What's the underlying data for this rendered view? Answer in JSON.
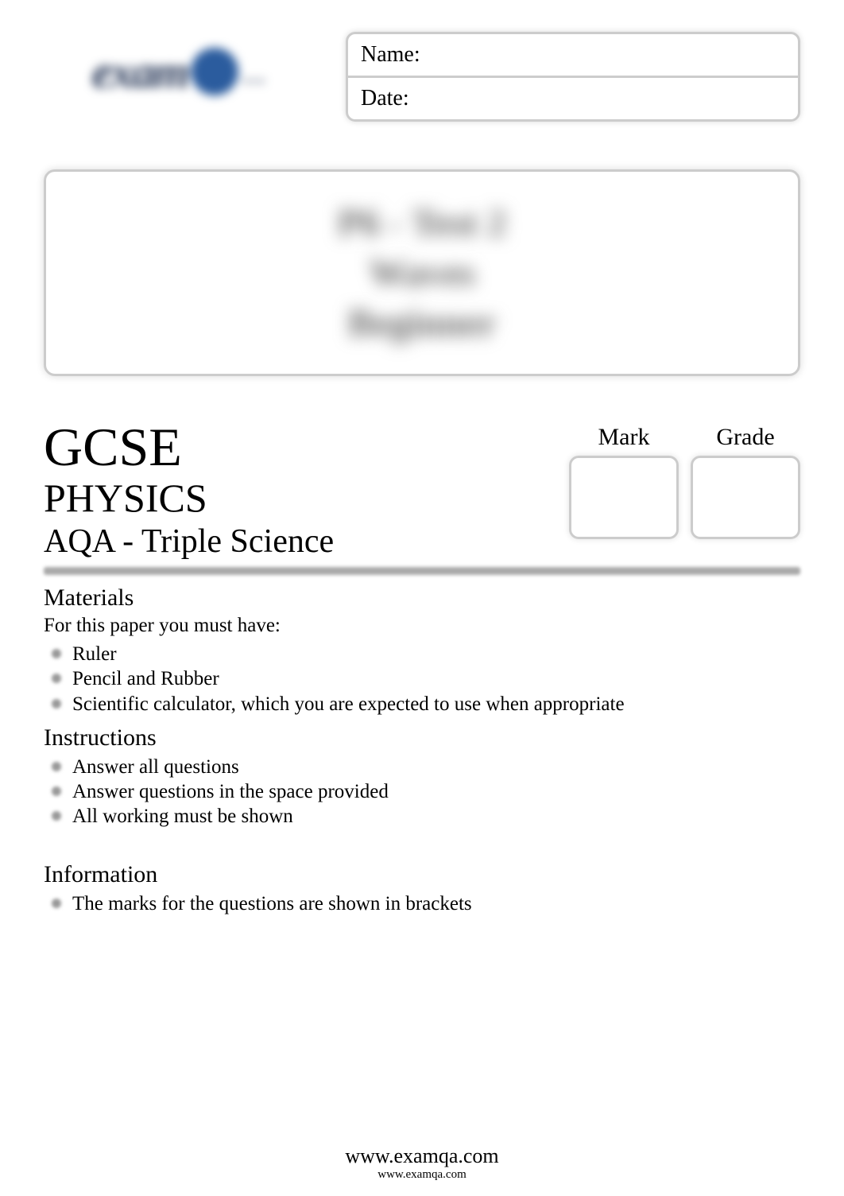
{
  "header": {
    "name_label": "Name:",
    "date_label": "Date:",
    "logo_text_left": "exam",
    "logo_text_right": "..."
  },
  "title_box": {
    "line1": "P6 - Test 2",
    "line2": "Waves",
    "line3": "Beginner"
  },
  "exam": {
    "level": "GCSE",
    "subject": "PHYSICS",
    "board": "AQA - Triple Science",
    "mark_label": "Mark",
    "grade_label": "Grade"
  },
  "materials": {
    "heading": "Materials",
    "intro": "For this paper you must have:",
    "items": [
      "Ruler",
      "Pencil and Rubber",
      "Scientific calculator, which you are expected to use when appropriate"
    ]
  },
  "instructions": {
    "heading": "Instructions",
    "items": [
      "Answer all questions",
      "Answer questions in the space provided",
      "All working must be shown"
    ]
  },
  "information": {
    "heading": "Information",
    "items": [
      "The marks for the questions are shown in brackets"
    ]
  },
  "footer": {
    "url_big": "www.examqa.com",
    "url_small": "www.examqa.com"
  },
  "styling": {
    "page_bg": "#ffffff",
    "text_color": "#000000",
    "border_color": "#cccccc",
    "divider_color": "#aaaaaa",
    "bullet_color": "#999999",
    "logo_color": "#2a3a5a",
    "logo_circle_color": "#2b5c9e"
  }
}
